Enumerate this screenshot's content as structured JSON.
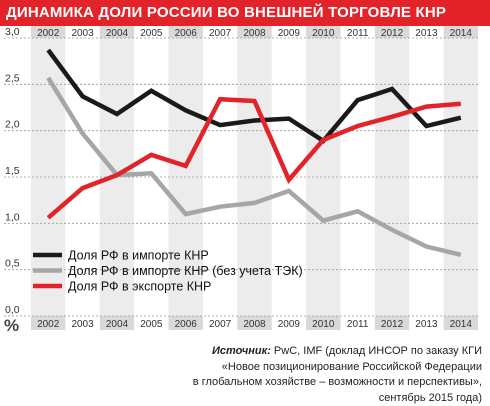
{
  "header": {
    "title": "ДИНАМИКА ДОЛИ РОССИИ ВО ВНЕШНЕЙ ТОРГОВЛЕ КНР",
    "background": "#e3232a"
  },
  "source": {
    "label": "Источник:",
    "line1": "PwC, IMF (доклад ИНСОР по заказу КГИ",
    "line2": "«Новое позиционирование Российской Федерации",
    "line3": "в глобальном хозяйстве – возможности и перспективы», сентябрь 2015 года)"
  },
  "chart_data": {
    "type": "line",
    "title": "ДИНАМИКА ДОЛИ РОССИИ ВО ВНЕШНЕЙ ТОРГОВЛЕ КНР",
    "ylabel": "%",
    "xlabel": "",
    "categories": [
      "2002",
      "2003",
      "2004",
      "2005",
      "2006",
      "2007",
      "2008",
      "2009",
      "2010",
      "2011",
      "2012",
      "2013",
      "2014"
    ],
    "ylim": [
      0,
      3.0
    ],
    "yticks": [
      "0,0",
      "0,5",
      "1,0",
      "1,5",
      "2,0",
      "2,5",
      "3,0"
    ],
    "grid": true,
    "legend_position": "bottom-left",
    "series": [
      {
        "name": "Доля РФ в импорте КНР",
        "color": "#1a1a1a",
        "values": [
          2.87,
          2.37,
          2.18,
          2.43,
          2.22,
          2.06,
          2.11,
          2.13,
          1.89,
          2.33,
          2.45,
          2.05,
          2.14
        ]
      },
      {
        "name": "Доля РФ в импорте КНР (без учета ТЭК)",
        "color": "#a6a6a6",
        "values": [
          2.57,
          1.97,
          1.52,
          1.54,
          1.1,
          1.18,
          1.22,
          1.35,
          1.03,
          1.13,
          0.93,
          0.75,
          0.66
        ]
      },
      {
        "name": "Доля РФ в экспорте КНР",
        "color": "#e3232a",
        "values": [
          1.06,
          1.38,
          1.52,
          1.74,
          1.62,
          2.34,
          2.32,
          1.47,
          1.9,
          2.05,
          2.15,
          2.26,
          2.29
        ]
      }
    ]
  }
}
